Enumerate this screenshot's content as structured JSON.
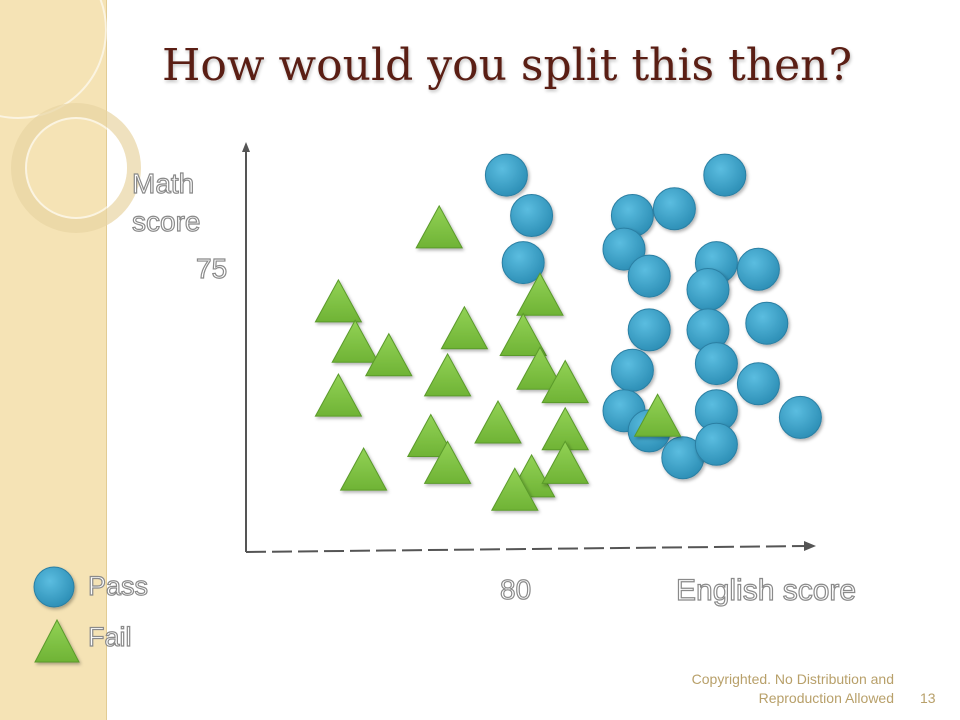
{
  "slide": {
    "title": "How would you split this then?",
    "footer_line1": "Copyrighted. No Distribution and",
    "footer_line2": "Reproduction Allowed",
    "page_number": "13"
  },
  "legend": [
    {
      "label": "Pass",
      "shape": "circle"
    },
    {
      "label": "Fail",
      "shape": "triangle"
    }
  ],
  "colors": {
    "pass": "#3aa3c9",
    "fail": "#7cc242",
    "title": "#5a1e14",
    "side_band": "#f5e3b5"
  },
  "chart_data": {
    "type": "scatter",
    "xlabel": "English score",
    "ylabel_line1": "Math",
    "ylabel_line2": "score",
    "x_tick_labels": [
      "80"
    ],
    "y_tick_labels": [
      "75"
    ],
    "series": [
      {
        "name": "Pass",
        "shape": "circle",
        "points": [
          [
            61,
            86
          ],
          [
            64,
            80
          ],
          [
            63,
            73
          ],
          [
            76,
            80
          ],
          [
            81,
            81
          ],
          [
            87,
            86
          ],
          [
            75,
            75
          ],
          [
            86,
            73
          ],
          [
            78,
            71
          ],
          [
            85,
            69
          ],
          [
            91,
            72
          ],
          [
            78,
            63
          ],
          [
            85,
            63
          ],
          [
            92,
            64
          ],
          [
            76,
            57
          ],
          [
            86,
            58
          ],
          [
            91,
            55
          ],
          [
            75,
            51
          ],
          [
            78,
            48
          ],
          [
            86,
            51
          ],
          [
            96,
            50
          ],
          [
            82,
            44
          ],
          [
            86,
            46
          ]
        ]
      },
      {
        "name": "Fail",
        "shape": "triangle",
        "points": [
          [
            53,
            78
          ],
          [
            65,
            68
          ],
          [
            41,
            67
          ],
          [
            43,
            61
          ],
          [
            56,
            63
          ],
          [
            63,
            62
          ],
          [
            47,
            59
          ],
          [
            54,
            56
          ],
          [
            65,
            57
          ],
          [
            68,
            55
          ],
          [
            41,
            53
          ],
          [
            60,
            49
          ],
          [
            68,
            48
          ],
          [
            52,
            47
          ],
          [
            44,
            42
          ],
          [
            54,
            43
          ],
          [
            64,
            41
          ],
          [
            68,
            43
          ],
          [
            62,
            39
          ],
          [
            79,
            50
          ]
        ]
      }
    ]
  }
}
